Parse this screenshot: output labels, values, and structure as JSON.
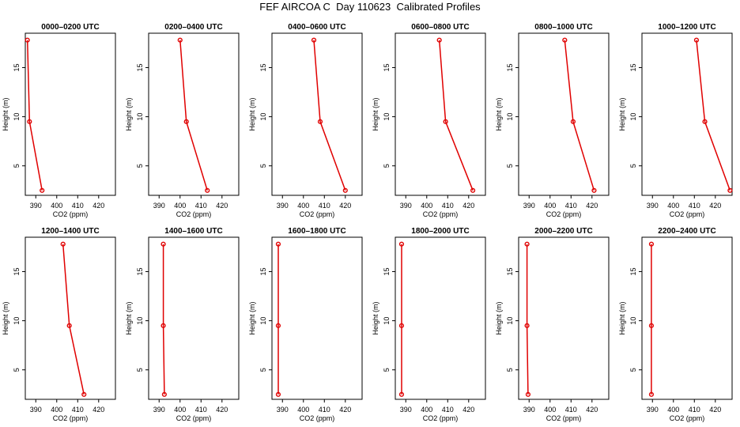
{
  "title": "FEF AIRCOA C  Day 110623  Calibrated Profiles",
  "chart_data": {
    "type": "line",
    "xlabel": "CO2 (ppm)",
    "ylabel": "Height (m)",
    "xlim": [
      385,
      428
    ],
    "ylim": [
      2,
      18.5
    ],
    "xticks": [
      "390",
      "400",
      "410",
      "420"
    ],
    "yticks": [
      "5",
      "10",
      "15"
    ],
    "grid": false,
    "panels": [
      {
        "title": "0000–0200 UTC",
        "x": [
          386,
          387,
          393
        ],
        "y": [
          17.8,
          9.5,
          2.5
        ]
      },
      {
        "title": "0200–0400 UTC",
        "x": [
          400,
          403,
          413
        ],
        "y": [
          17.8,
          9.5,
          2.5
        ]
      },
      {
        "title": "0400–0600 UTC",
        "x": [
          405,
          408,
          420
        ],
        "y": [
          17.8,
          9.5,
          2.5
        ]
      },
      {
        "title": "0600–0800 UTC",
        "x": [
          406,
          409,
          422
        ],
        "y": [
          17.8,
          9.5,
          2.5
        ]
      },
      {
        "title": "0800–1000 UTC",
        "x": [
          407,
          411,
          421
        ],
        "y": [
          17.8,
          9.5,
          2.5
        ]
      },
      {
        "title": "1000–1200 UTC",
        "x": [
          411,
          415,
          427
        ],
        "y": [
          17.8,
          9.5,
          2.5
        ]
      },
      {
        "title": "1200–1400 UTC",
        "x": [
          403,
          406,
          413
        ],
        "y": [
          17.8,
          9.5,
          2.5
        ]
      },
      {
        "title": "1400–1600 UTC",
        "x": [
          392,
          392,
          392.5
        ],
        "y": [
          17.8,
          9.5,
          2.5
        ]
      },
      {
        "title": "1600–1800 UTC",
        "x": [
          388,
          388,
          388
        ],
        "y": [
          17.8,
          9.5,
          2.5
        ]
      },
      {
        "title": "1800–2000 UTC",
        "x": [
          388,
          388,
          388
        ],
        "y": [
          17.8,
          9.5,
          2.5
        ]
      },
      {
        "title": "2000–2200 UTC",
        "x": [
          389,
          389,
          389.5
        ],
        "y": [
          17.8,
          9.5,
          2.5
        ]
      },
      {
        "title": "2200–2400 UTC",
        "x": [
          389.5,
          389.5,
          389.5
        ],
        "y": [
          17.8,
          9.5,
          2.5
        ]
      }
    ],
    "colors": {
      "line": "#e00000",
      "axis": "#000000"
    }
  }
}
